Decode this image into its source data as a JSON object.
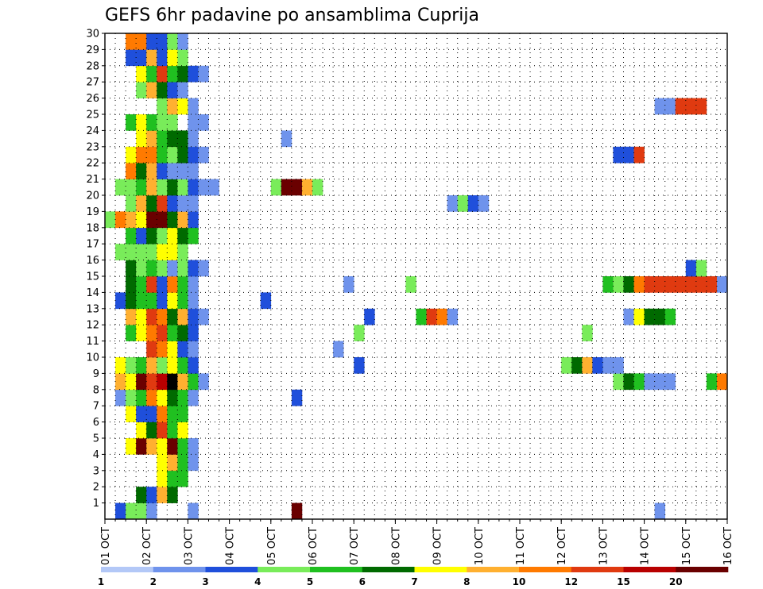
{
  "chart_data": {
    "type": "heatmap",
    "title": "GEFS 6hr padavine po ansamblima Cuprija",
    "xlabel": "",
    "ylabel": "",
    "x_ticks": [
      "01 OCT",
      "02 OCT",
      "03 OCT",
      "04 OCT",
      "05 OCT",
      "06 OCT",
      "07 OCT",
      "08 OCT",
      "09 OCT",
      "10 OCT",
      "11 OCT",
      "12 OCT",
      "13 OCT",
      "14 OCT",
      "15 OCT",
      "16 OCT"
    ],
    "y_ticks": [
      "1",
      "2",
      "3",
      "4",
      "5",
      "6",
      "7",
      "8",
      "9",
      "10",
      "11",
      "12",
      "13",
      "14",
      "15",
      "16",
      "17",
      "18",
      "19",
      "20",
      "21",
      "22",
      "23",
      "24",
      "25",
      "26",
      "27",
      "28",
      "29",
      "30"
    ],
    "xlim": [
      0,
      60
    ],
    "ylim": [
      0,
      30
    ],
    "grid": true,
    "colorbar": {
      "labels": [
        "1",
        "2",
        "3",
        "4",
        "5",
        "6",
        "7",
        "8",
        "10",
        "12",
        "15",
        "20"
      ],
      "colors": [
        "#b3c8f7",
        "#6f93ec",
        "#1f4fdb",
        "#79ec5a",
        "#20c020",
        "#006a00",
        "#ffff00",
        "#ffb030",
        "#ff7a00",
        "#e03a10",
        "#b80000",
        "#6a0000"
      ]
    },
    "cells": [
      [
        0,
        0,
        2
      ],
      [
        3,
        0,
        2
      ],
      [
        4,
        0,
        3
      ],
      [
        5,
        0,
        3
      ],
      [
        6,
        0,
        1
      ],
      [
        10,
        0,
        1
      ],
      [
        20,
        0,
        11
      ],
      [
        55,
        0,
        1
      ],
      [
        5,
        1,
        5
      ],
      [
        6,
        1,
        2
      ],
      [
        7,
        1,
        7
      ],
      [
        8,
        1,
        5
      ],
      [
        7,
        2,
        6
      ],
      [
        8,
        2,
        4
      ],
      [
        9,
        2,
        4
      ],
      [
        7,
        3,
        6
      ],
      [
        8,
        3,
        7
      ],
      [
        9,
        3,
        4
      ],
      [
        10,
        3,
        1
      ],
      [
        4,
        4,
        6
      ],
      [
        5,
        4,
        11
      ],
      [
        6,
        4,
        7
      ],
      [
        7,
        4,
        6
      ],
      [
        8,
        4,
        11
      ],
      [
        9,
        4,
        4
      ],
      [
        10,
        4,
        1
      ],
      [
        5,
        5,
        6
      ],
      [
        6,
        5,
        5
      ],
      [
        7,
        5,
        9
      ],
      [
        8,
        5,
        4
      ],
      [
        9,
        5,
        6
      ],
      [
        4,
        6,
        6
      ],
      [
        5,
        6,
        2
      ],
      [
        6,
        6,
        2
      ],
      [
        7,
        6,
        8
      ],
      [
        8,
        6,
        4
      ],
      [
        9,
        6,
        4
      ],
      [
        3,
        7,
        1
      ],
      [
        4,
        7,
        3
      ],
      [
        5,
        7,
        4
      ],
      [
        6,
        7,
        8
      ],
      [
        7,
        7,
        6
      ],
      [
        8,
        7,
        5
      ],
      [
        9,
        7,
        4
      ],
      [
        10,
        7,
        1
      ],
      [
        20,
        7,
        2
      ],
      [
        3,
        8,
        7
      ],
      [
        4,
        8,
        6
      ],
      [
        5,
        8,
        11
      ],
      [
        6,
        8,
        9
      ],
      [
        7,
        8,
        10
      ],
      [
        8,
        8,
        12
      ],
      [
        9,
        8,
        7
      ],
      [
        10,
        8,
        4
      ],
      [
        11,
        8,
        1
      ],
      [
        51,
        8,
        3
      ],
      [
        52,
        8,
        5
      ],
      [
        53,
        8,
        4
      ],
      [
        54,
        8,
        1
      ],
      [
        55,
        8,
        1
      ],
      [
        56,
        8,
        1
      ],
      [
        60,
        8,
        4
      ],
      [
        61,
        8,
        8
      ],
      [
        62,
        8,
        11
      ],
      [
        3,
        9,
        6
      ],
      [
        4,
        9,
        3
      ],
      [
        5,
        9,
        4
      ],
      [
        6,
        9,
        7
      ],
      [
        7,
        9,
        3
      ],
      [
        8,
        9,
        6
      ],
      [
        9,
        9,
        4
      ],
      [
        10,
        9,
        2
      ],
      [
        26,
        9,
        2
      ],
      [
        46,
        9,
        3
      ],
      [
        47,
        9,
        5
      ],
      [
        48,
        9,
        7
      ],
      [
        49,
        9,
        2
      ],
      [
        50,
        9,
        1
      ],
      [
        51,
        9,
        1
      ],
      [
        6,
        10,
        9
      ],
      [
        7,
        10,
        8
      ],
      [
        8,
        10,
        6
      ],
      [
        9,
        10,
        2
      ],
      [
        10,
        10,
        1
      ],
      [
        24,
        10,
        1
      ],
      [
        4,
        11,
        4
      ],
      [
        5,
        11,
        6
      ],
      [
        6,
        11,
        8
      ],
      [
        7,
        11,
        9
      ],
      [
        8,
        11,
        4
      ],
      [
        9,
        11,
        5
      ],
      [
        10,
        11,
        2
      ],
      [
        26,
        11,
        3
      ],
      [
        48,
        11,
        3
      ],
      [
        4,
        12,
        7
      ],
      [
        5,
        12,
        6
      ],
      [
        6,
        12,
        9
      ],
      [
        7,
        12,
        8
      ],
      [
        8,
        12,
        5
      ],
      [
        9,
        12,
        7
      ],
      [
        10,
        12,
        2
      ],
      [
        11,
        12,
        1
      ],
      [
        27,
        12,
        2
      ],
      [
        32,
        12,
        4
      ],
      [
        33,
        12,
        9
      ],
      [
        34,
        12,
        8
      ],
      [
        35,
        12,
        1
      ],
      [
        52,
        12,
        1
      ],
      [
        53,
        12,
        6
      ],
      [
        54,
        12,
        5
      ],
      [
        55,
        12,
        5
      ],
      [
        56,
        12,
        4
      ],
      [
        3,
        13,
        2
      ],
      [
        4,
        13,
        5
      ],
      [
        5,
        13,
        4
      ],
      [
        6,
        13,
        4
      ],
      [
        7,
        13,
        2
      ],
      [
        8,
        13,
        6
      ],
      [
        9,
        13,
        4
      ],
      [
        10,
        13,
        1
      ],
      [
        17,
        13,
        2
      ],
      [
        4,
        14,
        5
      ],
      [
        5,
        14,
        4
      ],
      [
        6,
        14,
        9
      ],
      [
        7,
        14,
        2
      ],
      [
        8,
        14,
        8
      ],
      [
        9,
        14,
        4
      ],
      [
        10,
        14,
        1
      ],
      [
        25,
        14,
        1
      ],
      [
        31,
        14,
        3
      ],
      [
        50,
        14,
        4
      ],
      [
        51,
        14,
        3
      ],
      [
        52,
        14,
        5
      ],
      [
        53,
        14,
        8
      ],
      [
        54,
        14,
        9
      ],
      [
        55,
        14,
        9
      ],
      [
        56,
        14,
        9
      ],
      [
        57,
        14,
        9
      ],
      [
        58,
        14,
        9
      ],
      [
        59,
        14,
        9
      ],
      [
        60,
        14,
        9
      ],
      [
        61,
        14,
        1
      ],
      [
        4,
        15,
        5
      ],
      [
        5,
        15,
        3
      ],
      [
        6,
        15,
        4
      ],
      [
        7,
        15,
        3
      ],
      [
        8,
        15,
        1
      ],
      [
        9,
        15,
        3
      ],
      [
        10,
        15,
        2
      ],
      [
        11,
        15,
        1
      ],
      [
        58,
        15,
        2
      ],
      [
        59,
        15,
        3
      ],
      [
        3,
        16,
        3
      ],
      [
        4,
        16,
        3
      ],
      [
        5,
        16,
        3
      ],
      [
        6,
        16,
        3
      ],
      [
        7,
        16,
        6
      ],
      [
        8,
        16,
        6
      ],
      [
        9,
        16,
        3
      ],
      [
        4,
        17,
        4
      ],
      [
        5,
        17,
        2
      ],
      [
        6,
        17,
        5
      ],
      [
        7,
        17,
        3
      ],
      [
        8,
        17,
        6
      ],
      [
        9,
        17,
        5
      ],
      [
        10,
        17,
        4
      ],
      [
        1,
        18,
        1
      ],
      [
        2,
        18,
        3
      ],
      [
        3,
        18,
        8
      ],
      [
        4,
        18,
        7
      ],
      [
        5,
        18,
        6
      ],
      [
        6,
        18,
        11
      ],
      [
        7,
        18,
        11
      ],
      [
        8,
        18,
        5
      ],
      [
        9,
        18,
        7
      ],
      [
        10,
        18,
        2
      ],
      [
        4,
        19,
        3
      ],
      [
        5,
        19,
        7
      ],
      [
        6,
        19,
        5
      ],
      [
        7,
        19,
        9
      ],
      [
        8,
        19,
        2
      ],
      [
        9,
        19,
        1
      ],
      [
        10,
        19,
        1
      ],
      [
        35,
        19,
        1
      ],
      [
        36,
        19,
        3
      ],
      [
        37,
        19,
        2
      ],
      [
        38,
        19,
        1
      ],
      [
        3,
        20,
        3
      ],
      [
        4,
        20,
        3
      ],
      [
        5,
        20,
        4
      ],
      [
        6,
        20,
        7
      ],
      [
        7,
        20,
        3
      ],
      [
        8,
        20,
        5
      ],
      [
        9,
        20,
        3
      ],
      [
        10,
        20,
        2
      ],
      [
        11,
        20,
        1
      ],
      [
        12,
        20,
        1
      ],
      [
        18,
        20,
        3
      ],
      [
        19,
        20,
        11
      ],
      [
        20,
        20,
        11
      ],
      [
        21,
        20,
        7
      ],
      [
        22,
        20,
        3
      ],
      [
        4,
        21,
        8
      ],
      [
        5,
        21,
        5
      ],
      [
        6,
        21,
        7
      ],
      [
        7,
        21,
        2
      ],
      [
        8,
        21,
        1
      ],
      [
        9,
        21,
        1
      ],
      [
        10,
        21,
        1
      ],
      [
        4,
        22,
        6
      ],
      [
        5,
        22,
        8
      ],
      [
        6,
        22,
        8
      ],
      [
        7,
        22,
        4
      ],
      [
        8,
        22,
        3
      ],
      [
        9,
        22,
        5
      ],
      [
        10,
        22,
        2
      ],
      [
        11,
        22,
        1
      ],
      [
        51,
        22,
        2
      ],
      [
        52,
        22,
        2
      ],
      [
        53,
        22,
        9
      ],
      [
        5,
        23,
        6
      ],
      [
        6,
        23,
        7
      ],
      [
        7,
        23,
        4
      ],
      [
        8,
        23,
        5
      ],
      [
        9,
        23,
        5
      ],
      [
        10,
        23,
        1
      ],
      [
        19,
        23,
        1
      ],
      [
        4,
        24,
        4
      ],
      [
        5,
        24,
        6
      ],
      [
        6,
        24,
        4
      ],
      [
        7,
        24,
        3
      ],
      [
        8,
        24,
        3
      ],
      [
        10,
        24,
        1
      ],
      [
        11,
        24,
        1
      ],
      [
        7,
        25,
        3
      ],
      [
        8,
        25,
        7
      ],
      [
        9,
        25,
        6
      ],
      [
        10,
        25,
        1
      ],
      [
        55,
        25,
        1
      ],
      [
        56,
        25,
        1
      ],
      [
        57,
        25,
        9
      ],
      [
        58,
        25,
        9
      ],
      [
        59,
        25,
        9
      ],
      [
        5,
        26,
        3
      ],
      [
        6,
        26,
        7
      ],
      [
        7,
        26,
        5
      ],
      [
        8,
        26,
        2
      ],
      [
        9,
        26,
        1
      ],
      [
        5,
        27,
        6
      ],
      [
        6,
        27,
        4
      ],
      [
        7,
        27,
        9
      ],
      [
        8,
        27,
        4
      ],
      [
        9,
        27,
        5
      ],
      [
        10,
        27,
        2
      ],
      [
        11,
        27,
        1
      ],
      [
        4,
        28,
        2
      ],
      [
        5,
        28,
        2
      ],
      [
        6,
        28,
        7
      ],
      [
        7,
        28,
        2
      ],
      [
        8,
        28,
        6
      ],
      [
        9,
        28,
        3
      ],
      [
        4,
        29,
        8
      ],
      [
        5,
        29,
        8
      ],
      [
        6,
        29,
        2
      ],
      [
        7,
        29,
        2
      ],
      [
        8,
        29,
        3
      ],
      [
        9,
        29,
        1
      ]
    ]
  }
}
